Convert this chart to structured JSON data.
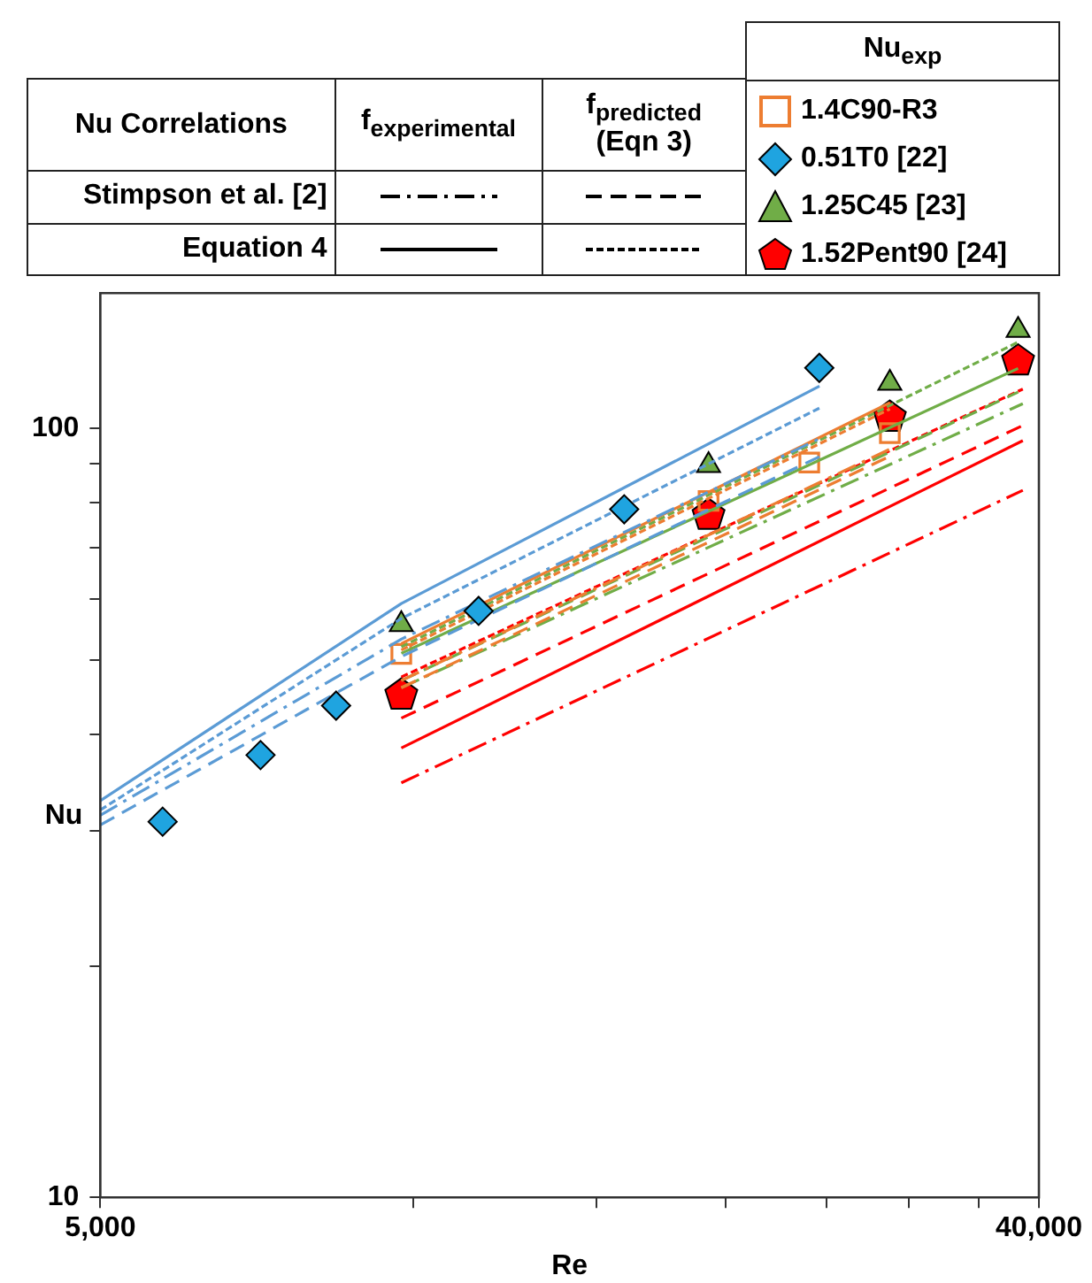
{
  "chart_data": {
    "type": "scatter",
    "xlabel": "Re",
    "ylabel": "Nu",
    "log": "xy",
    "legend": "top right",
    "grid": false,
    "xlim": [
      5000,
      40000
    ],
    "xticks": [
      {
        "value": 5000,
        "label": "5,000"
      },
      {
        "value": 10000,
        "label": null
      },
      {
        "value": 15000,
        "label": null
      },
      {
        "value": 20000,
        "label": null
      },
      {
        "value": 25000,
        "label": null
      },
      {
        "value": 30000,
        "label": null
      },
      {
        "value": 35000,
        "label": null
      },
      {
        "value": 40000,
        "label": "40,000"
      }
    ],
    "ylim": [
      10,
      150
    ],
    "yticks": [
      10,
      {
        "value": 20,
        "label": null
      },
      {
        "value": 30,
        "label": null
      },
      {
        "value": 40,
        "label": null
      },
      {
        "value": 50,
        "label": null
      },
      {
        "value": 60,
        "label": null
      },
      {
        "value": 70,
        "label": null
      },
      {
        "value": 80,
        "label": null
      },
      {
        "value": 90,
        "label": null
      },
      100
    ],
    "annotations": [
      "Nu Correlations",
      "f$_{experimental}$",
      "f$_{predicted}$ (Eqn 3)",
      "Nu$_{exp}$",
      "Stimpson et al. [2]",
      "Equation 4"
    ],
    "series": [
      {
        "type": "line",
        "color": "#5b9bd5",
        "line_style": "solid",
        "x": [
          5000,
          9740,
          24600
        ],
        "values": [
          32.8,
          59.2,
          113.5
        ]
      },
      {
        "type": "line",
        "color": "#5b9bd5",
        "line_style": "dotted",
        "x": [
          5000,
          9740,
          24600
        ],
        "values": [
          31.9,
          56.6,
          106.3
        ]
      },
      {
        "type": "line",
        "color": "#5b9bd5",
        "line_style": "dashdot",
        "x": [
          5000,
          9740,
          24600
        ],
        "values": [
          31.4,
          53.2,
          97
        ]
      },
      {
        "type": "line",
        "color": "#5b9bd5",
        "line_style": "dashed",
        "x": [
          5000,
          9740,
          24600
        ],
        "values": [
          30.5,
          50.5,
          91.9
        ]
      },
      {
        "type": "line",
        "color": "#ed7d31",
        "line_style": "solid",
        "x": [
          9740,
          28750
        ],
        "values": [
          52.5,
          108
        ]
      },
      {
        "type": "line",
        "color": "#ed7d31",
        "line_style": "dotted",
        "x": [
          9740,
          28750
        ],
        "values": [
          51.5,
          106
        ]
      },
      {
        "type": "line",
        "color": "#ed7d31",
        "line_style": "dashdot",
        "x": [
          9740,
          28750
        ],
        "values": [
          47,
          94
        ]
      },
      {
        "type": "line",
        "color": "#ed7d31",
        "line_style": "dashed",
        "x": [
          9740,
          28750
        ],
        "values": [
          46,
          92
        ]
      },
      {
        "type": "line",
        "color": "#70ad47",
        "line_style": "solid",
        "x": [
          9740,
          38200
        ],
        "values": [
          51,
          119.7
        ]
      },
      {
        "type": "line",
        "color": "#70ad47",
        "line_style": "dotted",
        "x": [
          9740,
          38200
        ],
        "values": [
          52,
          129.5
        ]
      },
      {
        "type": "line",
        "color": "#70ad47",
        "line_style": "dashdot",
        "x": [
          9740,
          38600
        ],
        "values": [
          46,
          107.7
        ]
      },
      {
        "type": "line",
        "color": "#70ad47",
        "line_style": "dashed",
        "x": [
          9740,
          38200
        ],
        "values": [
          47,
          111.5
        ]
      },
      {
        "type": "line",
        "color": "#ff0000",
        "line_style": "dotted",
        "x": [
          9740,
          38600
        ],
        "values": [
          47.5,
          112.5
        ]
      },
      {
        "type": "line",
        "color": "#ff0000",
        "line_style": "dashed",
        "x": [
          9740,
          38600
        ],
        "values": [
          42,
          100.9
        ]
      },
      {
        "type": "line",
        "color": "#ff0000",
        "line_style": "solid",
        "x": [
          9740,
          38600
        ],
        "values": [
          38.4,
          96.4
        ]
      },
      {
        "type": "line",
        "color": "#ff0000",
        "line_style": "dashdot",
        "x": [
          9740,
          38600
        ],
        "values": [
          34.6,
          83.1
        ]
      },
      {
        "name": "1.4C90-R3",
        "marker": "square",
        "color": "#ed7d31",
        "x": [
          9740,
          19240,
          24050,
          28750
        ],
        "values": [
          50.9,
          80.5,
          90.3,
          98.6
        ]
      },
      {
        "name": "0.51T0 [22]",
        "marker": "diamond",
        "color": "#1fa4e0",
        "x": [
          5740,
          7130,
          8430,
          11560,
          15960,
          24590
        ],
        "values": [
          30.8,
          37.6,
          43.6,
          57.9,
          78.5,
          119.9
        ]
      },
      {
        "name": "1.25C45 [23]",
        "marker": "triangle",
        "color": "#70ad47",
        "x": [
          9740,
          19240,
          28750,
          38200
        ],
        "values": [
          55.6,
          89.5,
          114.5,
          134.2
        ]
      },
      {
        "name": "1.52Pent90 [24]",
        "color": "#ff0000",
        "x": [
          9740,
          19240,
          28750,
          38200
        ],
        "values": [
          45.0,
          77.1,
          103.4,
          122.4
        ]
      }
    ]
  }
}
